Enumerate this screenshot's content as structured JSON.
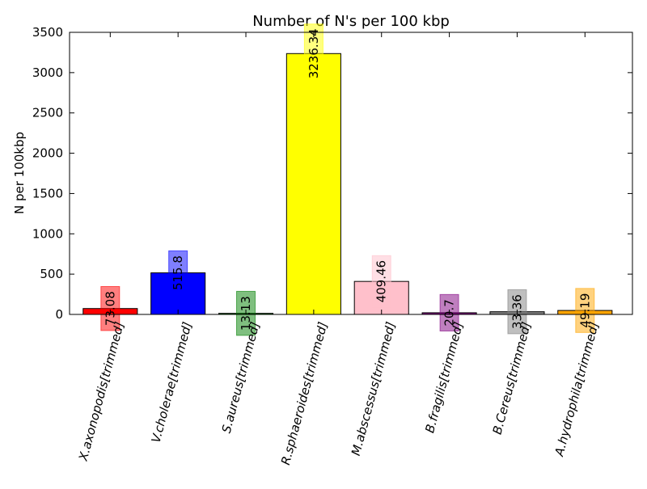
{
  "chart_data": {
    "type": "bar",
    "title": "Number of N's per 100 kbp",
    "xlabel": "",
    "ylabel": "N per 100kbp",
    "ylim": [
      0,
      3500
    ],
    "yticks": [
      0,
      500,
      1000,
      1500,
      2000,
      2500,
      3000,
      3500
    ],
    "grid": false,
    "categories": [
      "X.axonopodis[trimmed]",
      "V.cholerae[trimmed]",
      "S.aureus[trimmed]",
      "R.sphaeroides[trimmed]",
      "M.abscessus[trimmed]",
      "B.fragilis[trimmed]",
      "B.Cereus[trimmed]",
      "A.hydrophila[trimmed]"
    ],
    "values": [
      73.08,
      515.8,
      13.13,
      3236.34,
      409.46,
      20.7,
      33.36,
      49.19
    ],
    "data_labels": [
      "73.08",
      "515.8",
      "13.13",
      "3236.34",
      "409.46",
      "20.7",
      "33.36",
      "49.19"
    ],
    "colors": [
      "#ff0000",
      "#0000ff",
      "#008000",
      "#ffff00",
      "#ffc0cb",
      "#800080",
      "#808080",
      "#ffa500"
    ]
  }
}
